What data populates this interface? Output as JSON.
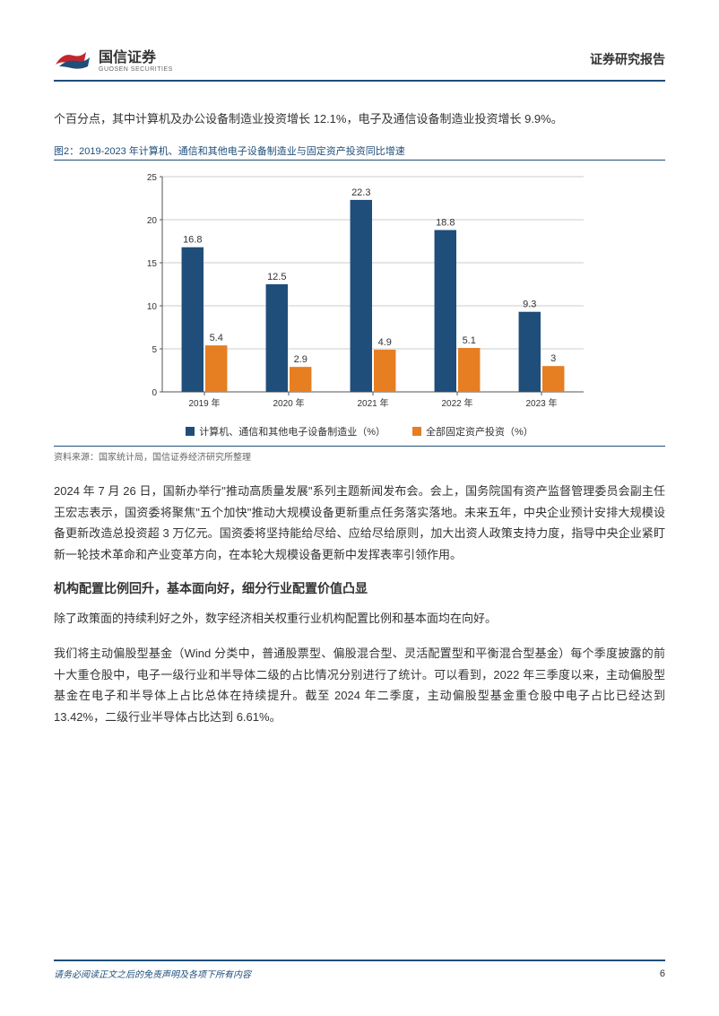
{
  "header": {
    "company_cn": "国信证券",
    "company_en": "GUOSEN SECURITIES",
    "report_title": "证券研究报告"
  },
  "intro_text": "个百分点，其中计算机及办公设备制造业投资增长 12.1%，电子及通信设备制造业投资增长 9.9%。",
  "figure": {
    "caption": "图2：2019-2023 年计算机、通信和其他电子设备制造业与固定资产投资同比增速",
    "type": "bar",
    "categories": [
      "2019 年",
      "2020 年",
      "2021 年",
      "2022 年",
      "2023 年"
    ],
    "series1_color": "#1f4e7a",
    "series1_name": "计算机、通信和其他电子设备制造业（%）",
    "series1_values": [
      16.8,
      12.5,
      22.3,
      18.8,
      9.3
    ],
    "series2_color": "#e67e22",
    "series2_name": "全部固定资产投资（%）",
    "series2_values": [
      5.4,
      2.9,
      4.9,
      5.1,
      3
    ],
    "ylim": [
      0,
      25
    ],
    "ytick_step": 5,
    "grid_color": "#cccccc",
    "axis_color": "#555555",
    "background_color": "#ffffff",
    "label_fontsize": 10,
    "value_fontsize": 11
  },
  "source_text": "资料来源：国家统计局，国信证券经济研究所整理",
  "body_para1": "2024 年 7 月 26 日，国新办举行\"推动高质量发展\"系列主题新闻发布会。会上，国务院国有资产监督管理委员会副主任王宏志表示，国资委将聚焦\"五个加快\"推动大规模设备更新重点任务落实落地。未来五年，中央企业预计安排大规模设备更新改造总投资超 3 万亿元。国资委将坚持能给尽给、应给尽给原则，加大出资人政策支持力度，指导中央企业紧盯新一轮技术革命和产业变革方向，在本轮大规模设备更新中发挥表率引领作用。",
  "section_heading": "机构配置比例回升，基本面向好，细分行业配置价值凸显",
  "body_para2": "除了政策面的持续利好之外，数字经济相关权重行业机构配置比例和基本面均在向好。",
  "body_para3": "我们将主动偏股型基金（Wind 分类中，普通股票型、偏股混合型、灵活配置型和平衡混合型基金）每个季度披露的前十大重仓股中，电子一级行业和半导体二级的占比情况分别进行了统计。可以看到，2022 年三季度以来，主动偏股型基金在电子和半导体上占比总体在持续提升。截至 2024 年二季度，主动偏股型基金重仓股中电子占比已经达到 13.42%，二级行业半导体占比达到 6.61%。",
  "footer": {
    "disclaimer": "请务必阅读正文之后的免责声明及各项下所有内容",
    "page_number": "6"
  },
  "colors": {
    "primary": "#1f4e7a",
    "accent_red": "#c1272d",
    "text": "#333333",
    "text_light": "#666666"
  }
}
